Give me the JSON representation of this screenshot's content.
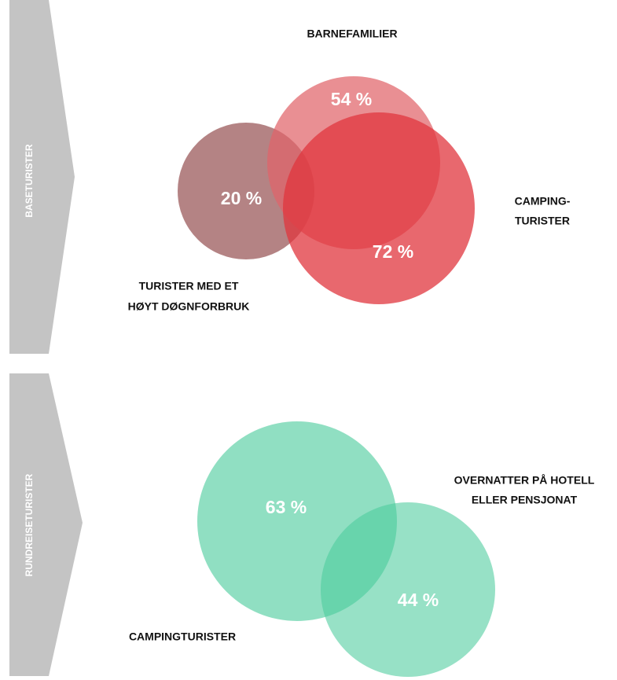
{
  "sections": [
    {
      "label": "BASETURISTER",
      "circles": [
        {
          "label": [
            "TURISTER MED ET",
            "HØYT DØGNFORBRUK"
          ],
          "percent": "20 %"
        },
        {
          "label": [
            "BARNEFAMILIER"
          ],
          "percent": "54 %"
        },
        {
          "label": [
            "CAMPING-",
            "TURISTER"
          ],
          "percent": "72 %"
        }
      ]
    },
    {
      "label": "RUNDREISETURISTER",
      "circles": [
        {
          "label": [
            "CAMPINGTURISTER"
          ],
          "percent": "63 %"
        },
        {
          "label": [
            "OVERNATTER PÅ HOTELL",
            "ELLER PENSJONAT"
          ],
          "percent": "44 %"
        }
      ]
    }
  ]
}
